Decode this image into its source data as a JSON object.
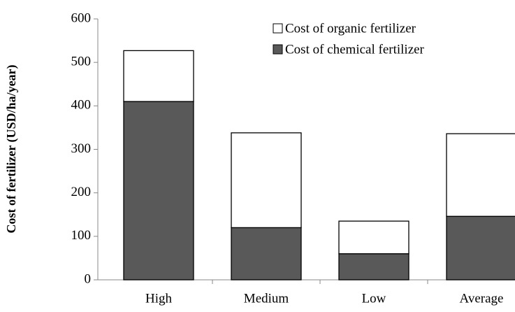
{
  "chart_data": {
    "type": "stacked_bar",
    "y_label": "Cost of fertilizer  (USD/ha/year)",
    "categories": [
      "High",
      "Medium",
      "Low",
      "Average"
    ],
    "series": [
      {
        "name": "Cost of chemical fertilizer",
        "color": "#595959",
        "values": [
          410,
          120,
          60,
          146
        ]
      },
      {
        "name": "Cost of organic fertilizer",
        "color": "#ffffff",
        "values": [
          117,
          218,
          75,
          190
        ]
      }
    ],
    "ylim": [
      0,
      600
    ],
    "yticks": [
      0,
      100,
      200,
      300,
      400,
      500,
      600
    ],
    "legend": "top-right",
    "grid": false
  }
}
